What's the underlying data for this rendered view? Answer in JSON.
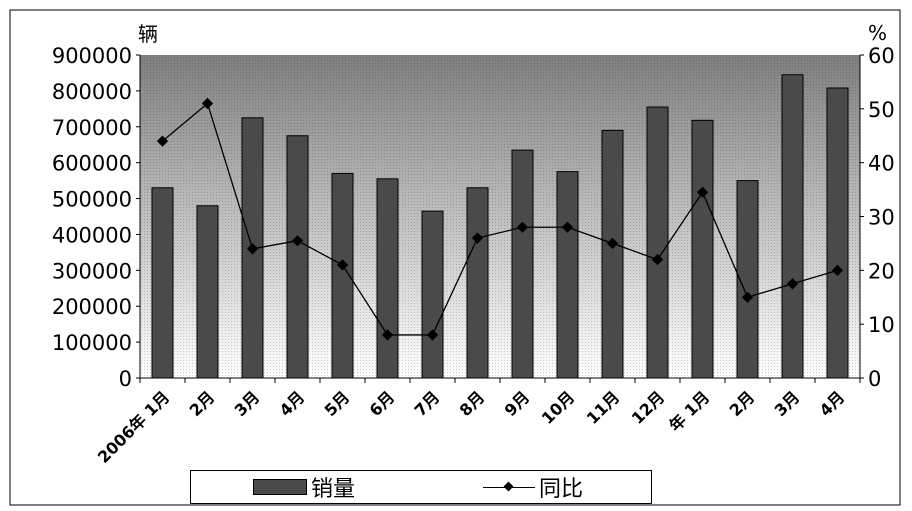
{
  "chart_data": {
    "type": "bar",
    "categories": [
      "2006年 1月",
      "2月",
      "3月",
      "4月",
      "5月",
      "6月",
      "7月",
      "8月",
      "9月",
      "10月",
      "11月",
      "12月",
      "年 1月",
      "2月",
      "3月",
      "4月"
    ],
    "series": [
      {
        "name": "销量",
        "type": "bar",
        "axis": "left",
        "values": [
          530000,
          480000,
          725000,
          675000,
          570000,
          555000,
          465000,
          530000,
          635000,
          575000,
          690000,
          755000,
          718000,
          550000,
          845000,
          808000
        ]
      },
      {
        "name": "同比",
        "type": "line",
        "axis": "right",
        "values": [
          44,
          51,
          24,
          25.5,
          21,
          8,
          8,
          26,
          28,
          28,
          25,
          22,
          34.5,
          15,
          17.5,
          20
        ]
      }
    ],
    "y_left": {
      "label": "辆",
      "ylim": [
        0,
        900000
      ],
      "ticks": [
        "900000",
        "800000",
        "700000",
        "600000",
        "500000",
        "400000",
        "300000",
        "200000",
        "100000",
        "0"
      ]
    },
    "y_right": {
      "label": "%",
      "ylim": [
        0,
        60
      ],
      "ticks": [
        "60",
        "50",
        "40",
        "30",
        "20",
        "10",
        "0"
      ]
    },
    "grid": false,
    "legend": "bottom",
    "colors": {
      "bar": "#4a4a4a",
      "line": "#000000",
      "plot_top": "#7f7f7f",
      "plot_bottom": "#ffffff"
    }
  }
}
